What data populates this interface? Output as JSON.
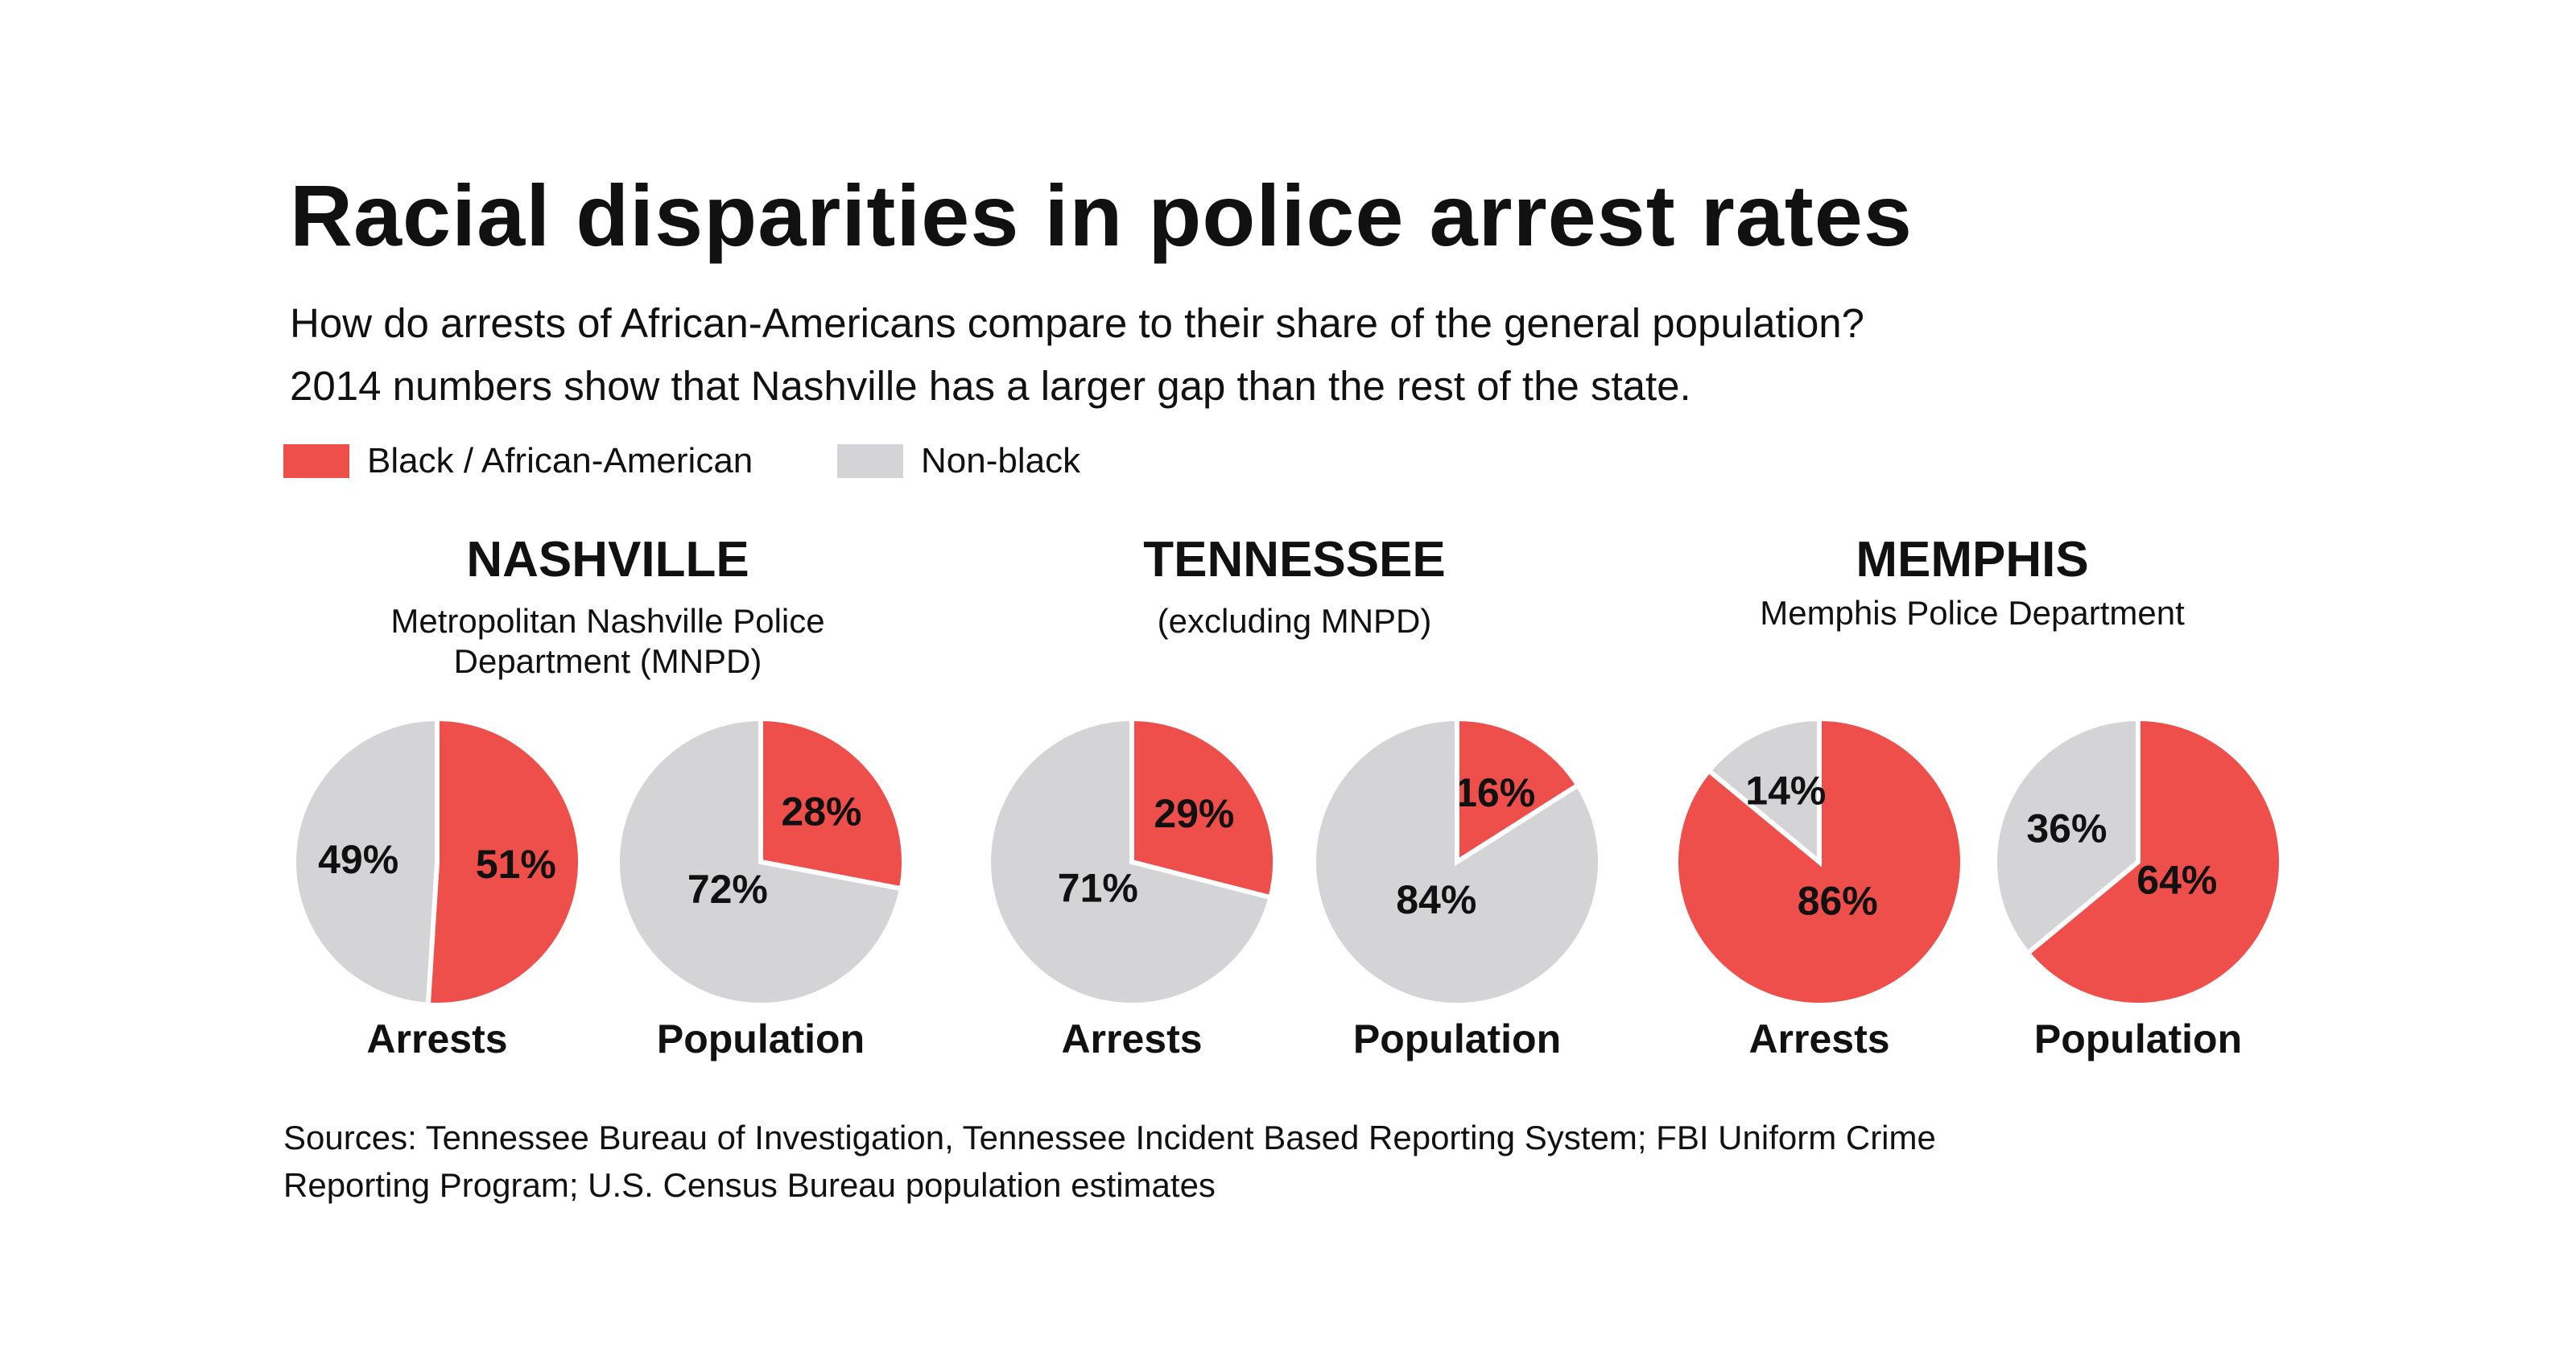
{
  "title": "Racial disparities in police arrest rates",
  "subtitle": [
    "How do arrests of African-Americans compare to their share of the general population?",
    "2014  numbers show that Nashville has a larger gap than the rest of the state."
  ],
  "legend": [
    {
      "label": "Black / African-American",
      "color": "#ef4f4a"
    },
    {
      "label": "Non-black",
      "color": "#d4d4d6"
    }
  ],
  "chart_data": {
    "type": "pie",
    "groups": [
      {
        "title": "NASHVILLE",
        "subtitle": [
          "Metropolitan Nashville Police",
          "Department (MNPD)"
        ],
        "pies": [
          {
            "label": "Arrests",
            "black": 51,
            "nonblack": 49,
            "black_label": "51%",
            "nonblack_label": "49%"
          },
          {
            "label": "Population",
            "black": 28,
            "nonblack": 72,
            "black_label": "28%",
            "nonblack_label": "72%"
          }
        ]
      },
      {
        "title": "TENNESSEE",
        "subtitle": [
          "(excluding MNPD)"
        ],
        "pies": [
          {
            "label": "Arrests",
            "black": 29,
            "nonblack": 71,
            "black_label": "29%",
            "nonblack_label": "71%"
          },
          {
            "label": "Population",
            "black": 16,
            "nonblack": 84,
            "black_label": "16%",
            "nonblack_label": "84%"
          }
        ]
      },
      {
        "title": "MEMPHIS",
        "subtitle": [
          "Memphis Police Department"
        ],
        "pies": [
          {
            "label": "Arrests",
            "black": 86,
            "nonblack": 14,
            "black_label": "86%",
            "nonblack_label": "14%"
          },
          {
            "label": "Population",
            "black": 64,
            "nonblack": 36,
            "black_label": "64%",
            "nonblack_label": "36%"
          }
        ]
      }
    ]
  },
  "sources": [
    "Sources: Tennessee Bureau of Investigation, Tennessee Incident Based Reporting System; FBI Uniform Crime",
    "Reporting Program; U.S. Census Bureau population estimates"
  ]
}
